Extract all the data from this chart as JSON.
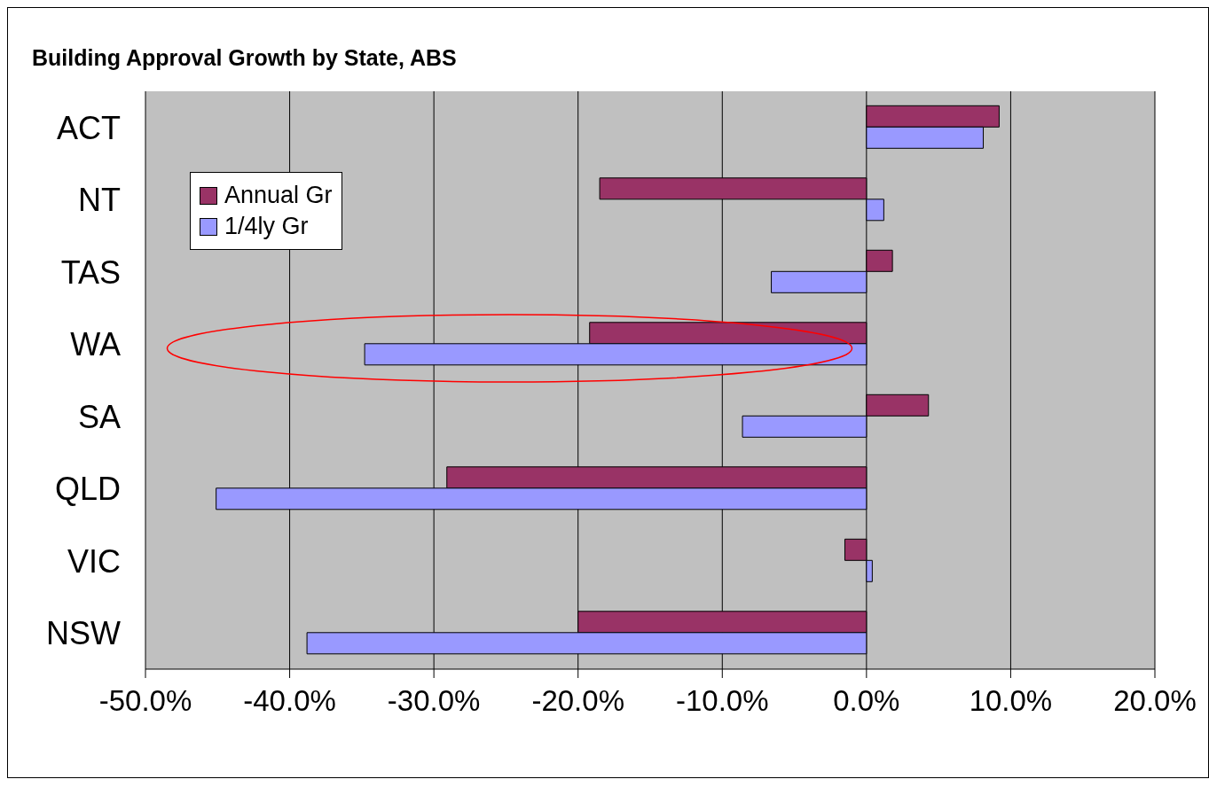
{
  "chart_data": {
    "type": "bar",
    "orientation": "horizontal",
    "title": "Building Approval Growth by State, ABS",
    "categories": [
      "ACT",
      "NT",
      "TAS",
      "WA",
      "SA",
      "QLD",
      "VIC",
      "NSW"
    ],
    "series": [
      {
        "name": "Annual Gr",
        "color": "#993366",
        "values": [
          9.2,
          -18.5,
          1.8,
          -19.2,
          4.3,
          -29.1,
          -1.5,
          -20.0
        ]
      },
      {
        "name": "1/4ly Gr",
        "color": "#9999ff",
        "values": [
          8.1,
          1.2,
          -6.6,
          -34.8,
          -8.6,
          -45.1,
          0.4,
          -38.8
        ]
      }
    ],
    "xlim": [
      -50,
      20
    ],
    "xticks": [
      {
        "value": -50,
        "label": "-50.0%"
      },
      {
        "value": -40,
        "label": "-40.0%"
      },
      {
        "value": -30,
        "label": "-30.0%"
      },
      {
        "value": -20,
        "label": "-20.0%"
      },
      {
        "value": -10,
        "label": "-10.0%"
      },
      {
        "value": 0,
        "label": "0.0%"
      },
      {
        "value": 10,
        "label": "10.0%"
      },
      {
        "value": 20,
        "label": "20.0%"
      }
    ],
    "grid": "x",
    "legend": "top left"
  }
}
